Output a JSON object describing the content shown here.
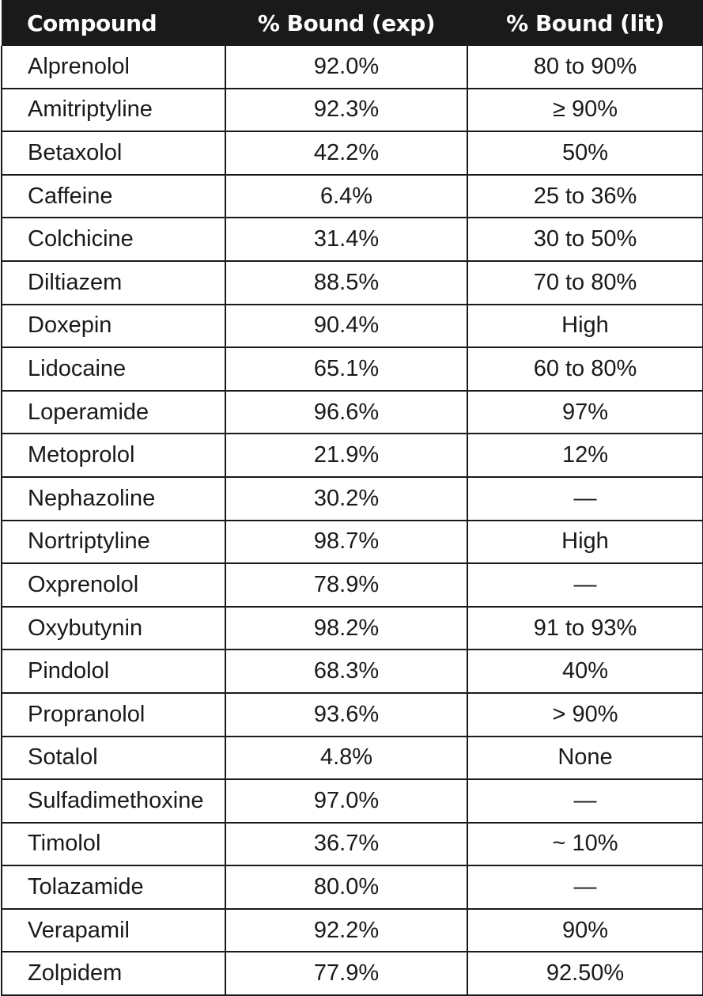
{
  "chart_data": {
    "type": "table",
    "columns": [
      "Compound",
      "% Bound (exp)",
      "% Bound (lit)"
    ],
    "rows": [
      [
        "Alprenolol",
        "92.0%",
        "80 to 90%"
      ],
      [
        "Amitriptyline",
        "92.3%",
        "≥ 90%"
      ],
      [
        "Betaxolol",
        "42.2%",
        "50%"
      ],
      [
        "Caffeine",
        "6.4%",
        "25 to 36%"
      ],
      [
        "Colchicine",
        "31.4%",
        "30 to 50%"
      ],
      [
        "Diltiazem",
        "88.5%",
        "70 to 80%"
      ],
      [
        "Doxepin",
        "90.4%",
        "High"
      ],
      [
        "Lidocaine",
        "65.1%",
        "60 to 80%"
      ],
      [
        "Loperamide",
        "96.6%",
        "97%"
      ],
      [
        "Metoprolol",
        "21.9%",
        "12%"
      ],
      [
        "Nephazoline",
        "30.2%",
        "—"
      ],
      [
        "Nortriptyline",
        "98.7%",
        "High"
      ],
      [
        "Oxprenolol",
        "78.9%",
        "—"
      ],
      [
        "Oxybutynin",
        "98.2%",
        "91 to 93%"
      ],
      [
        "Pindolol",
        "68.3%",
        "40%"
      ],
      [
        "Propranolol",
        "93.6%",
        "> 90%"
      ],
      [
        "Sotalol",
        "4.8%",
        "None"
      ],
      [
        "Sulfadimethoxine",
        "97.0%",
        "—"
      ],
      [
        "Timolol",
        "36.7%",
        "~ 10%"
      ],
      [
        "Tolazamide",
        "80.0%",
        "—"
      ],
      [
        "Verapamil",
        "92.2%",
        "90%"
      ],
      [
        "Zolpidem",
        "77.9%",
        "92.50%"
      ]
    ]
  }
}
